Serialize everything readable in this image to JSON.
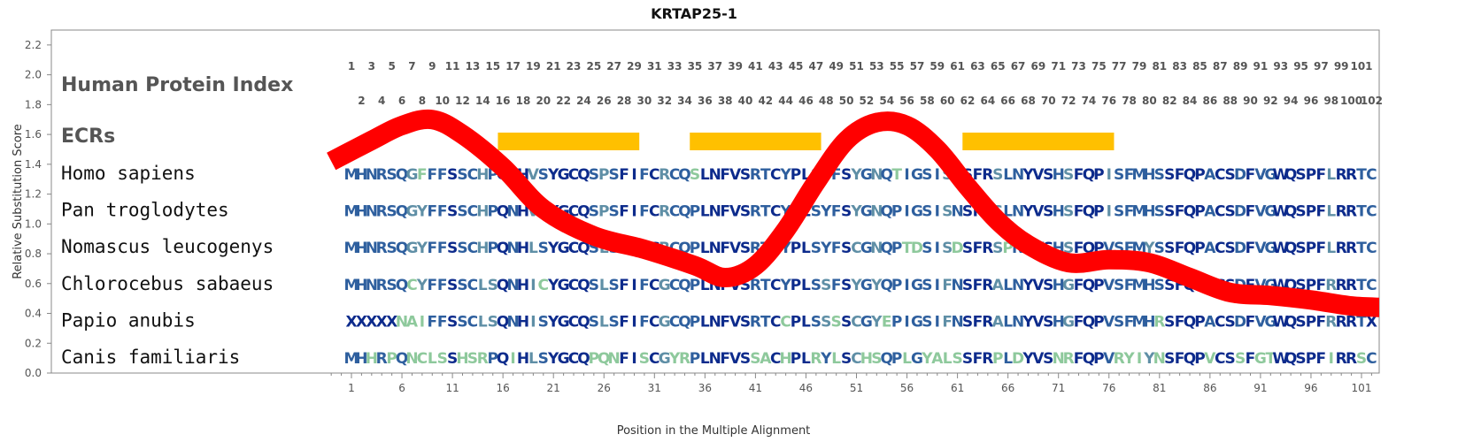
{
  "chart_data": {
    "type": "line",
    "title": "KRTAP25-1",
    "xlabel": "Position in the Multiple Alignment",
    "ylabel": "Relative Substitution Score",
    "xlim": [
      -1,
      103
    ],
    "ylim": [
      0,
      2.3
    ],
    "x_ticks": [
      1,
      6,
      11,
      16,
      21,
      26,
      31,
      36,
      41,
      46,
      51,
      56,
      61,
      66,
      71,
      76,
      81,
      86,
      91,
      96,
      101
    ],
    "y_ticks": [
      "0.0",
      "0.2",
      "0.4",
      "0.6",
      "0.8",
      "1.0",
      "1.2",
      "1.4",
      "1.6",
      "1.8",
      "2.0",
      "2.2"
    ],
    "grid": false,
    "series": [
      {
        "name": "",
        "color": "#ff0000",
        "x": [
          -1,
          3,
          6,
          9,
          12,
          16,
          20,
          25,
          30,
          35,
          38,
          41,
          44,
          47,
          50,
          53,
          56,
          59,
          62,
          65,
          68,
          72,
          76,
          80,
          84,
          88,
          92,
          96,
          100,
          103
        ],
        "y": [
          1.42,
          1.56,
          1.66,
          1.7,
          1.6,
          1.38,
          1.1,
          0.92,
          0.83,
          0.72,
          0.64,
          0.72,
          0.96,
          1.28,
          1.56,
          1.68,
          1.66,
          1.5,
          1.25,
          1.02,
          0.86,
          0.74,
          0.76,
          0.74,
          0.64,
          0.54,
          0.52,
          0.49,
          0.45,
          0.44
        ]
      }
    ],
    "ecr_label": "ECRs",
    "ecr_color": "#ffc000",
    "ecr_regions": [
      [
        16,
        29
      ],
      [
        35,
        47
      ],
      [
        62,
        76
      ]
    ],
    "index_label": "Human Protein Index",
    "index_top": [
      "1",
      "3",
      "5",
      "7",
      "9",
      "11",
      "13",
      "15",
      "17",
      "19",
      "21",
      "23",
      "25",
      "27",
      "29",
      "31",
      "33",
      "35",
      "37",
      "39",
      "41",
      "43",
      "45",
      "47",
      "49",
      "51",
      "53",
      "55",
      "57",
      "59",
      "61",
      "63",
      "65",
      "67",
      "69",
      "71",
      "73",
      "75",
      "77",
      "79",
      "81",
      "83",
      "85",
      "87",
      "89",
      "91",
      "93",
      "95",
      "97",
      "99",
      "101"
    ],
    "index_bottom": [
      "2",
      "4",
      "6",
      "8",
      "10",
      "12",
      "14",
      "16",
      "18",
      "20",
      "22",
      "24",
      "26",
      "28",
      "30",
      "32",
      "34",
      "36",
      "38",
      "40",
      "42",
      "44",
      "46",
      "48",
      "50",
      "52",
      "54",
      "56",
      "58",
      "60",
      "62",
      "64",
      "66",
      "68",
      "70",
      "72",
      "74",
      "76",
      "78",
      "80",
      "82",
      "84",
      "86",
      "88",
      "90",
      "92",
      "94",
      "96",
      "98",
      "100",
      "102"
    ],
    "alignment": [
      {
        "species": "Homo sapiens",
        "sequence": "MHNRSQGFFFSSCHPQNHVSYGCQSPSFIFCRCQSLNFVSRTCYPLSYFSYGNQTIGSISNSFRSLNYVSHSFQPISFMHSSFQPACSDFVGWQSPFLRRTC"
      },
      {
        "species": "Pan troglodytes",
        "sequence": "MHNRSQGYFFSSCHPQNHVSYGCQSPSFIFCRCQPLNFVSRTCYPLSYFSYGNQPIGSISNSFRSLNYVSHSFQPISFMHSSFQPACSDFVGWQSPFLRRTC"
      },
      {
        "species": "Nomascus leucogenys",
        "sequence": "MHNRSQGYFFSSCHPQNHLSYGCQSLSFIFCRCQPLNFVSRTCYPLSYFSCGNQPTDSISDSFRSPNYVSHSFQPVSFMYSSFQPACSDFVGWQSPFLRRTC"
      },
      {
        "species": "Chlorocebus sabaeus",
        "sequence": "MHNRSQCYFFSSCLSQNHICYGCQSLSFIFCGCQPLNFVSRTCYPLSSFSYGYQPIGSIFNSFRALNYVSHGFQPVSFMHSSFQPACSDFVGWQSPFRRRTC"
      },
      {
        "species": "Papio anubis",
        "sequence": "XXXXXNAIFFSSCLSQNHISYGCQSLSFIFCGCQPLNFVSRTCCPLSSSSCGYEPIGSIFNSFRALNYVSHGFQPVSFMHRSFQPACSDFVGWQSPFRRRTX"
      },
      {
        "species": "Canis familiaris",
        "sequence": "MHHRPQNCLSSHSRPQIHLSYGCQPQNFISCGYRPLNFVSSACHPLRYLSCHSQPLGYALSSFRPLDYVSNRFQPVRYIYNSFQPVCSSFGTWQSPFIRRSC"
      }
    ],
    "palette": {
      "conserved": "#0d2b8c",
      "mostly": "#2e5f9e",
      "partial": "#5f8fa6",
      "variable": "#8ec99c"
    }
  }
}
